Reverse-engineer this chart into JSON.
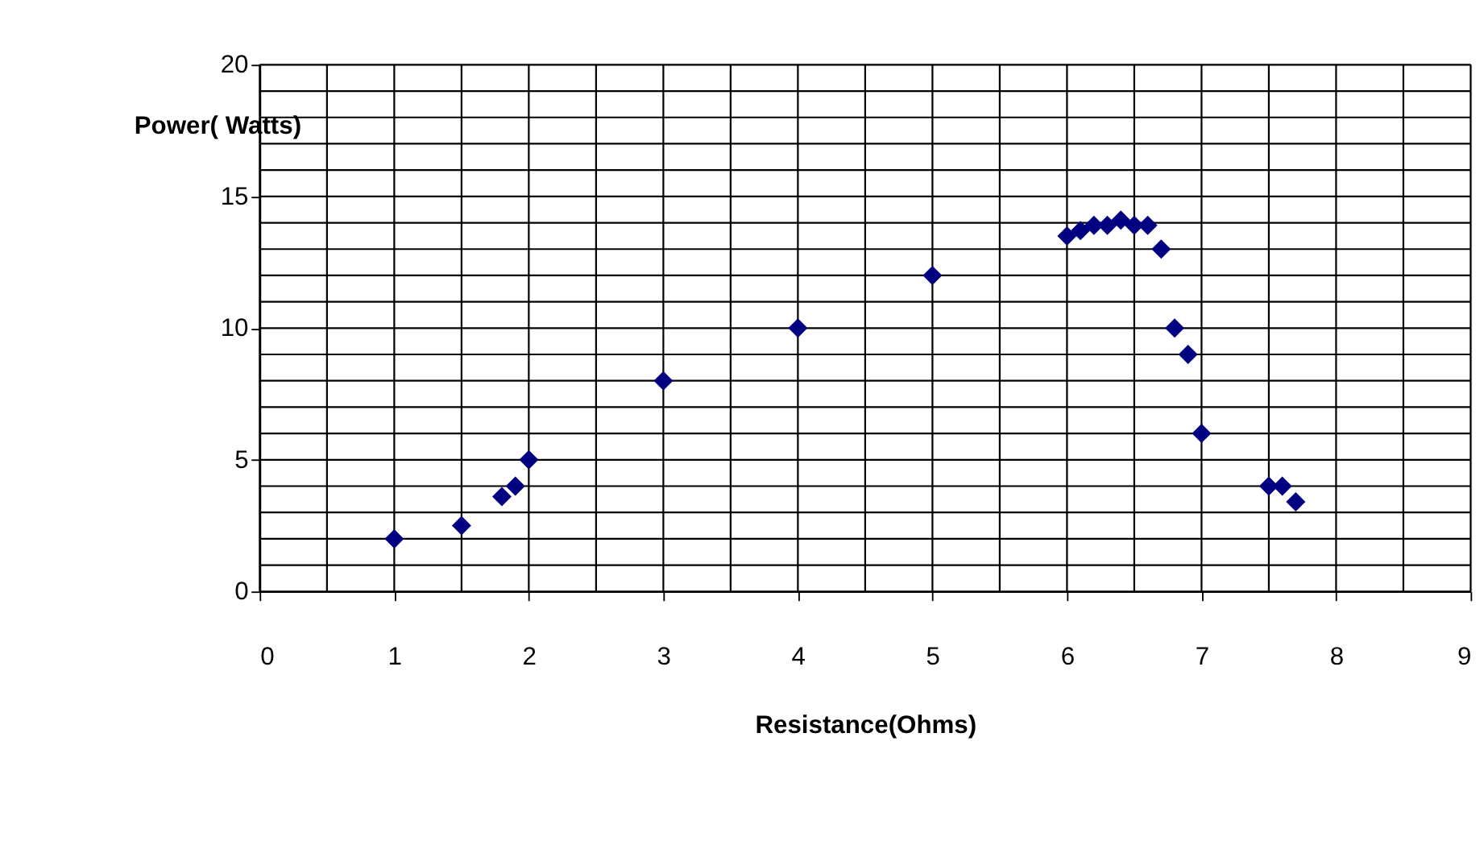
{
  "chart_data": {
    "type": "scatter",
    "xlabel": "Resistance(Ohms)",
    "ylabel": "Power( Watts)",
    "x": [
      1,
      1.5,
      1.8,
      1.9,
      2,
      3,
      4,
      5,
      6,
      6.1,
      6.2,
      6.3,
      6.4,
      6.5,
      6.6,
      6.7,
      6.8,
      6.9,
      7,
      7.5,
      7.6,
      7.7
    ],
    "series": [
      {
        "color": "#000080",
        "values": [
          2,
          2.5,
          3.6,
          4,
          5,
          8,
          10,
          12,
          13.5,
          13.7,
          13.9,
          13.9,
          14.1,
          13.9,
          13.9,
          13,
          10,
          9,
          6,
          4,
          4,
          3.4
        ]
      }
    ],
    "xlim": [
      0,
      9
    ],
    "xticks": [
      0,
      1,
      2,
      3,
      4,
      5,
      6,
      7,
      8,
      9
    ],
    "ylim": [
      0,
      20
    ],
    "yticks": [
      0,
      5,
      10,
      15,
      20
    ],
    "grid": true,
    "marker": "diamond",
    "legend": false
  }
}
